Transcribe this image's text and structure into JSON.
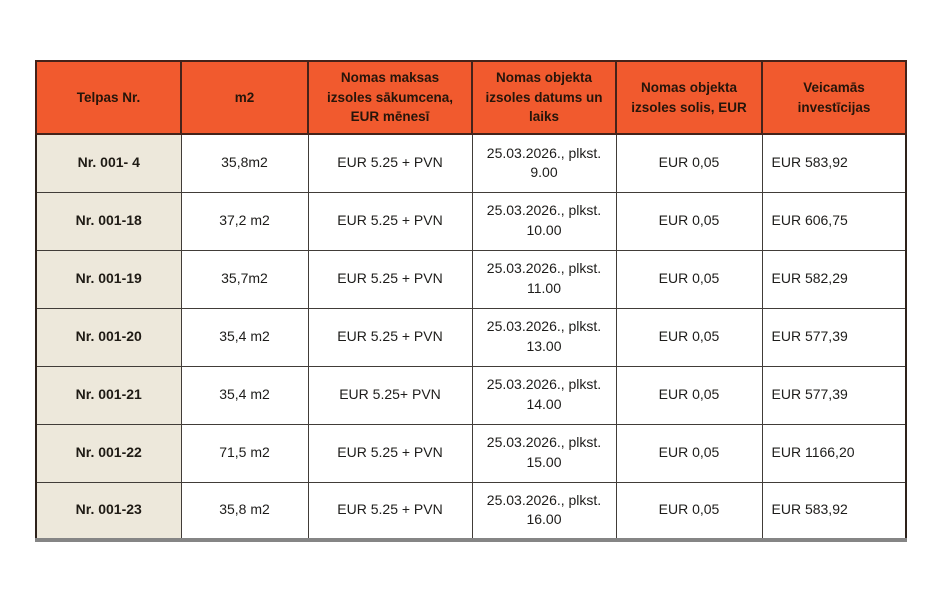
{
  "colors": {
    "header_bg": "#F15A2E",
    "header_text": "#26150a",
    "label_column_bg": "#EDE8DB",
    "cell_bg": "#ffffff",
    "inner_border": "#413c38",
    "outer_border": "#2e221b",
    "bottom_border": "#858585"
  },
  "table": {
    "columns": [
      {
        "label": "Telpas Nr."
      },
      {
        "label": "m2"
      },
      {
        "label": "Nomas maksas izsoles sākumcena, EUR mēnesī"
      },
      {
        "label": "Nomas objekta izsoles datums un laiks"
      },
      {
        "label": "Nomas objekta izsoles solis, EUR"
      },
      {
        "label": "Veicamās investīcijas"
      }
    ],
    "rows": [
      {
        "nr": "Nr. 001- 4",
        "m2": "35,8m2",
        "price": "EUR 5.25 + PVN",
        "datetime": "25.03.2026., plkst.\n9.00",
        "step": "EUR 0,05",
        "investment": "EUR 583,92"
      },
      {
        "nr": "Nr. 001-18",
        "m2": "37,2 m2",
        "price": "EUR 5.25 + PVN",
        "datetime": "25.03.2026., plkst.\n10.00",
        "step": "EUR 0,05",
        "investment": "EUR 606,75"
      },
      {
        "nr": "Nr. 001-19",
        "m2": "35,7m2",
        "price": "EUR 5.25 + PVN",
        "datetime": "25.03.2026., plkst.\n11.00",
        "step": "EUR 0,05",
        "investment": "EUR 582,29"
      },
      {
        "nr": "Nr. 001-20",
        "m2": "35,4 m2",
        "price": "EUR 5.25 + PVN",
        "datetime": "25.03.2026., plkst.\n13.00",
        "step": "EUR 0,05",
        "investment": "EUR 577,39"
      },
      {
        "nr": "Nr. 001-21",
        "m2": "35,4 m2",
        "price": "EUR 5.25+ PVN",
        "datetime": "25.03.2026., plkst.\n14.00",
        "step": "EUR 0,05",
        "investment": "EUR 577,39"
      },
      {
        "nr": "Nr. 001-22",
        "m2": "71,5 m2",
        "price": "EUR 5.25 + PVN",
        "datetime": "25.03.2026., plkst.\n15.00",
        "step": "EUR 0,05",
        "investment": "EUR 1166,20"
      },
      {
        "nr": "Nr. 001-23",
        "m2": "35,8 m2",
        "price": "EUR 5.25 + PVN",
        "datetime": "25.03.2026., plkst.\n16.00",
        "step": "EUR 0,05",
        "investment": "EUR 583,92"
      }
    ]
  }
}
